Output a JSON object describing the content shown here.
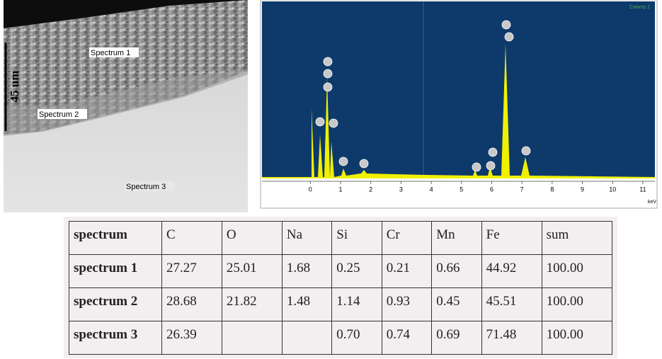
{
  "micrograph": {
    "labels": [
      "Spectrum 1",
      "Spectrum 2",
      "Spectrum 3"
    ],
    "scale_bar": "45 um"
  },
  "spectrum": {
    "title": "Спектр 1",
    "xticks": [
      0,
      1,
      2,
      3,
      4,
      5,
      6,
      7,
      8,
      9,
      10,
      11
    ],
    "xlim": [
      -1.6,
      11.4
    ],
    "x_unit": "keV"
  },
  "table": {
    "header": [
      "spectrum",
      "C",
      "O",
      "Na",
      "Si",
      "Cr",
      "Mn",
      "Fe",
      "sum"
    ],
    "rows": [
      [
        "spectrum 1",
        "27.27",
        "25.01",
        "1.68",
        "0.25",
        "0.21",
        "0.66",
        "44.92",
        "100.00"
      ],
      [
        "spectrum 2",
        "28.68",
        "21.82",
        "1.48",
        "1.14",
        "0.93",
        "0.45",
        "45.51",
        "100.00"
      ],
      [
        "spectrum 3",
        "26.39",
        null,
        null,
        "0.70",
        "0.74",
        "0.69",
        "71.48",
        "100.00"
      ]
    ]
  }
}
